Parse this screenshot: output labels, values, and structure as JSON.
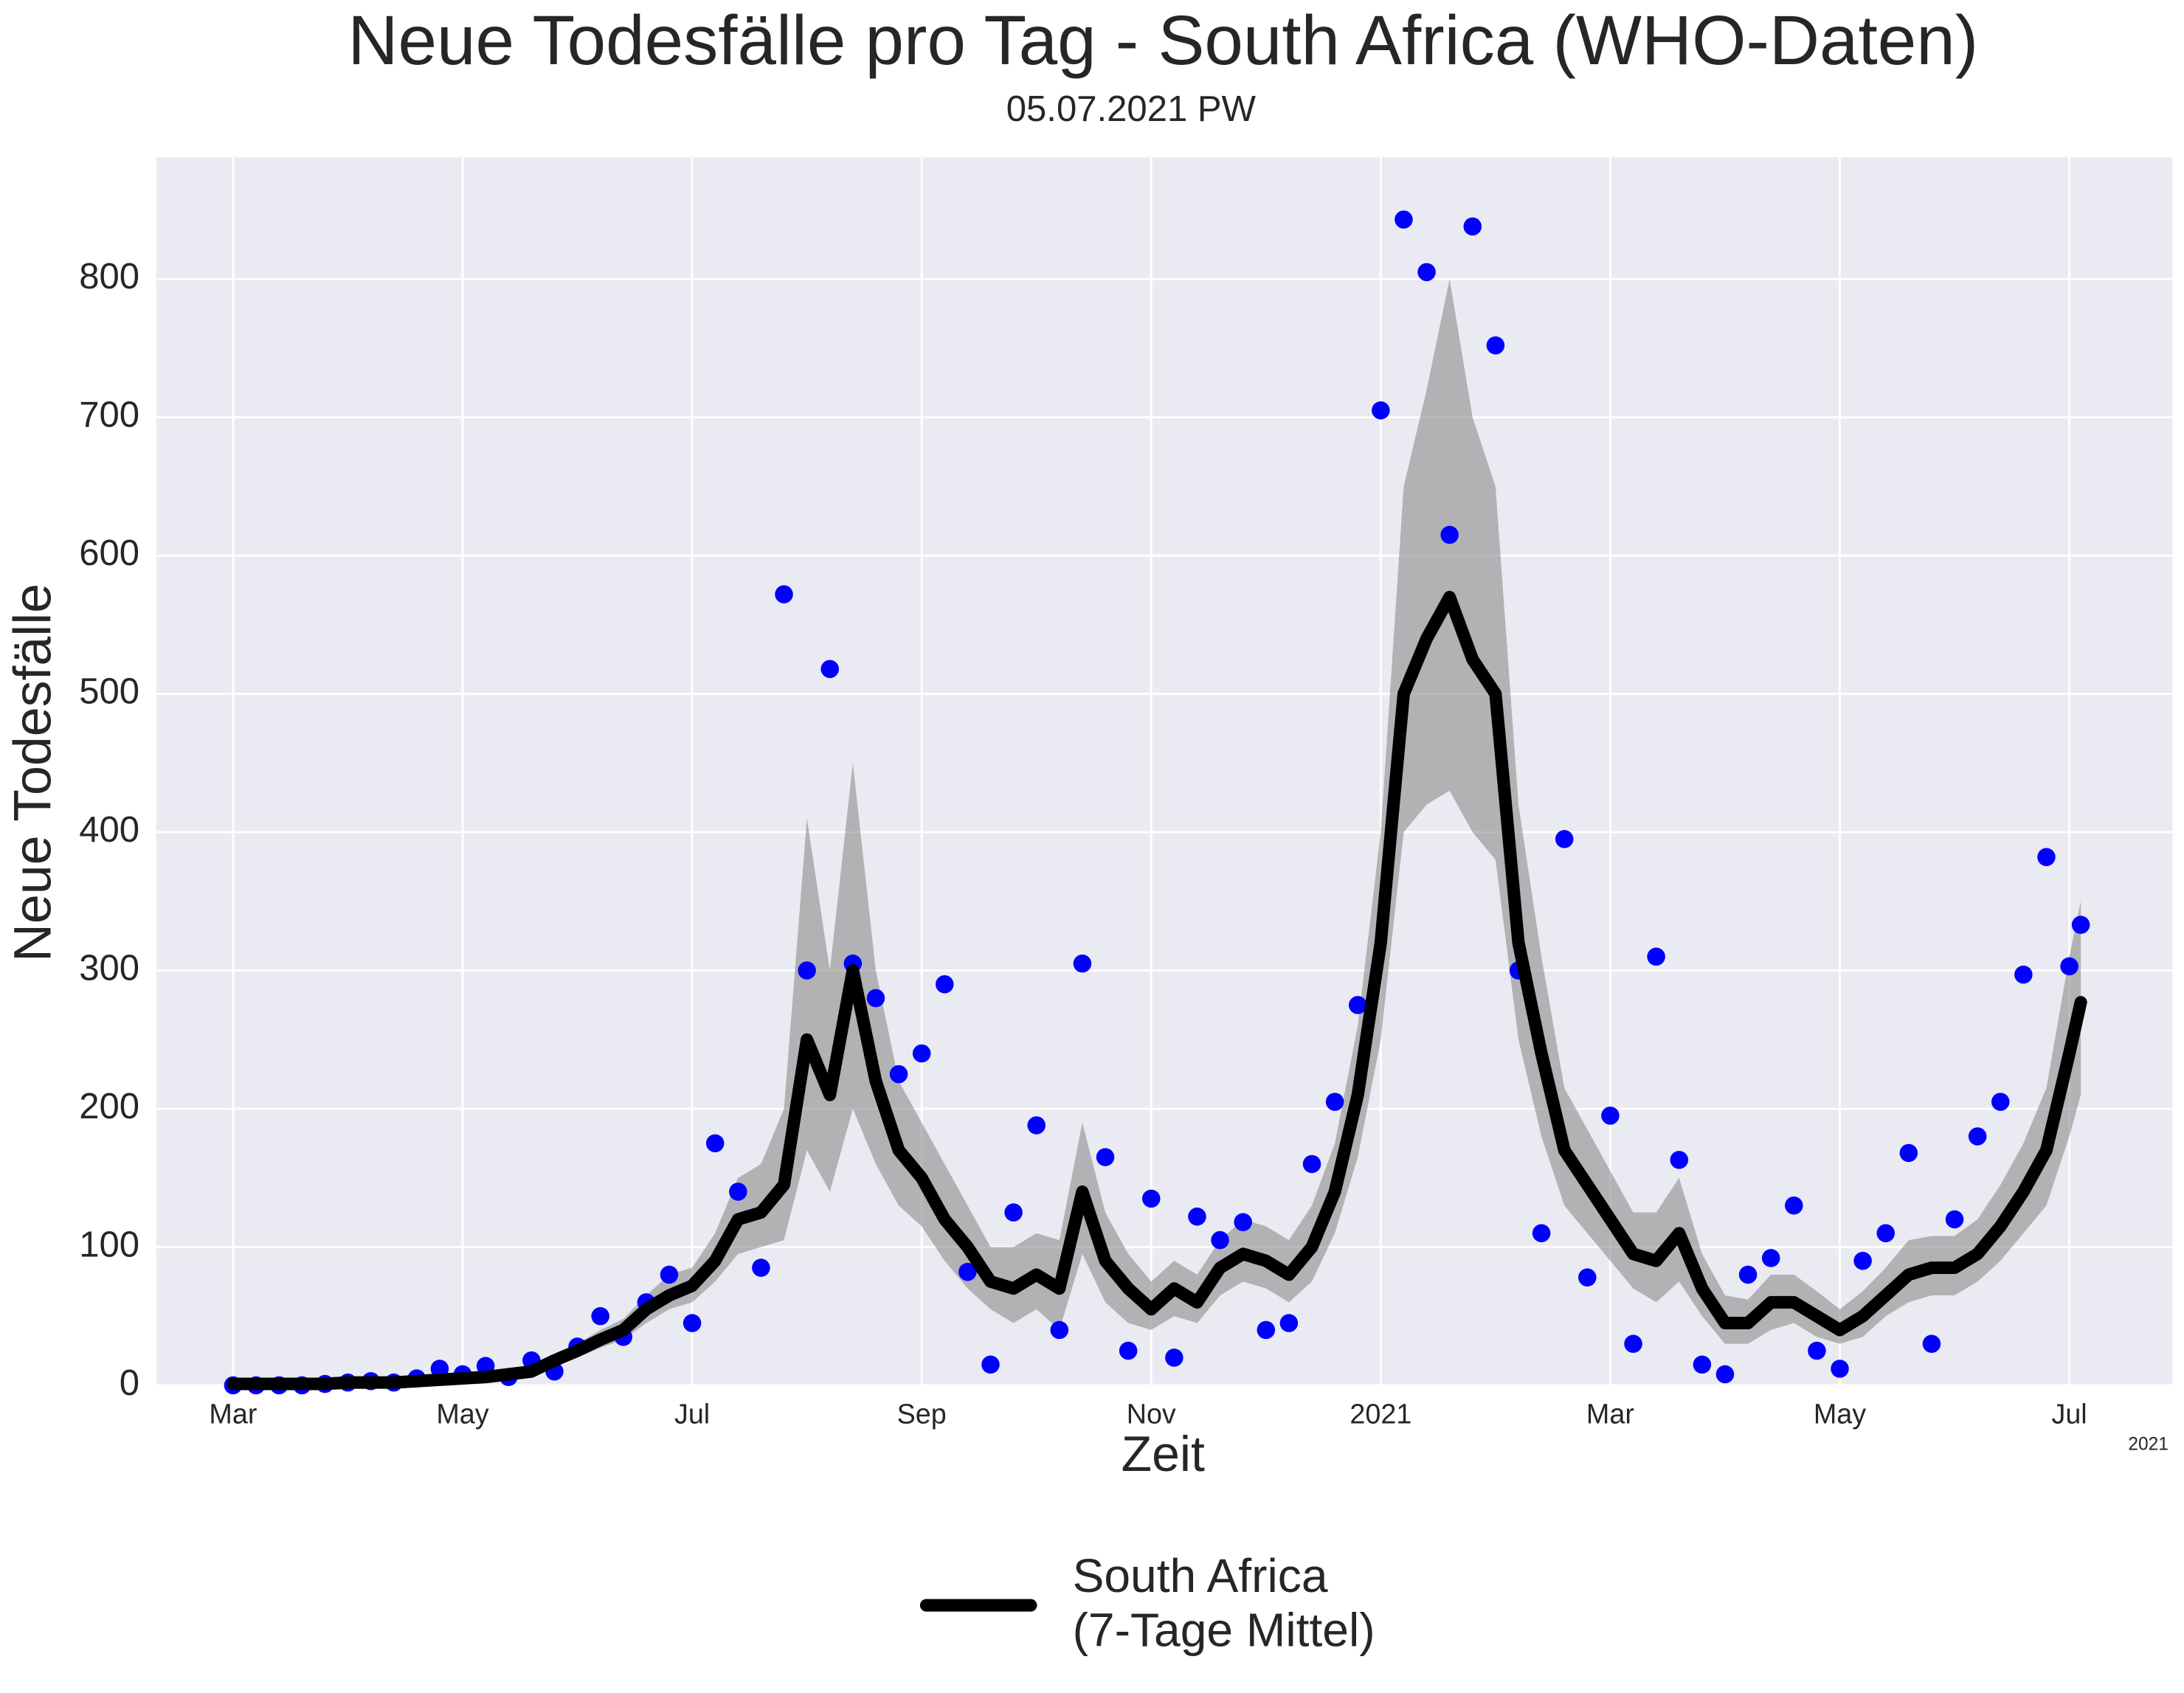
{
  "chart_data": {
    "type": "line",
    "title": "Neue Todesfälle pro Tag - South Africa (WHO-Daten)",
    "subtitle": "05.07.2021 PW",
    "xlabel": "Zeit",
    "ylabel": "Neue Todesfälle",
    "x_offset_label": "2021",
    "grid": true,
    "legend": "bottom",
    "xlim": [
      -0.67,
      16.9
    ],
    "ylim": [
      0,
      888
    ],
    "xticks": [
      {
        "value": 0,
        "label": "Mar"
      },
      {
        "value": 2,
        "label": "May"
      },
      {
        "value": 4,
        "label": "Jul"
      },
      {
        "value": 6,
        "label": "Sep"
      },
      {
        "value": 8,
        "label": "Nov"
      },
      {
        "value": 10,
        "label": "2021"
      },
      {
        "value": 12,
        "label": "Mar"
      },
      {
        "value": 14,
        "label": "May"
      },
      {
        "value": 16,
        "label": "Jul"
      }
    ],
    "yticks": [
      0,
      100,
      200,
      300,
      400,
      500,
      600,
      700,
      800
    ],
    "x": [
      0,
      0.2,
      0.4,
      0.6,
      0.8,
      1.0,
      1.2,
      1.4,
      1.6,
      1.8,
      2.0,
      2.2,
      2.4,
      2.6,
      2.8,
      3.0,
      3.2,
      3.4,
      3.6,
      3.8,
      4.0,
      4.2,
      4.4,
      4.6,
      4.8,
      5.0,
      5.2,
      5.4,
      5.6,
      5.8,
      6.0,
      6.2,
      6.4,
      6.6,
      6.8,
      7.0,
      7.2,
      7.4,
      7.6,
      7.8,
      8.0,
      8.2,
      8.4,
      8.6,
      8.8,
      9.0,
      9.2,
      9.4,
      9.6,
      9.8,
      10.0,
      10.2,
      10.4,
      10.6,
      10.8,
      11.0,
      11.2,
      11.4,
      11.6,
      11.8,
      12.0,
      12.2,
      12.4,
      12.6,
      12.8,
      13.0,
      13.2,
      13.4,
      13.6,
      13.8,
      14.0,
      14.2,
      14.4,
      14.6,
      14.8,
      15.0,
      15.2,
      15.4,
      15.6,
      15.8,
      16.0,
      16.1
    ],
    "band": {
      "color": "#8c8c8c",
      "lower": [
        0,
        0,
        0,
        0,
        0,
        1,
        1,
        1,
        2,
        3,
        4,
        4,
        6,
        8,
        14,
        20,
        27,
        33,
        45,
        55,
        60,
        75,
        95,
        100,
        105,
        170,
        140,
        200,
        160,
        130,
        115,
        90,
        70,
        55,
        45,
        55,
        40,
        95,
        60,
        45,
        40,
        50,
        45,
        65,
        75,
        70,
        60,
        75,
        110,
        165,
        250,
        400,
        420,
        430,
        400,
        380,
        250,
        180,
        130,
        110,
        90,
        70,
        60,
        75,
        50,
        30,
        30,
        40,
        45,
        35,
        30,
        35,
        50,
        60,
        65,
        65,
        75,
        90,
        110,
        130,
        180,
        210
      ],
      "upper": [
        2,
        2,
        2,
        2,
        2,
        3,
        3,
        3,
        4,
        6,
        7,
        9,
        11,
        13,
        22,
        30,
        40,
        48,
        65,
        80,
        85,
        110,
        150,
        160,
        200,
        410,
        300,
        450,
        300,
        220,
        190,
        160,
        130,
        100,
        100,
        110,
        105,
        190,
        125,
        95,
        75,
        90,
        80,
        105,
        120,
        115,
        105,
        130,
        175,
        260,
        400,
        650,
        720,
        800,
        700,
        650,
        420,
        310,
        215,
        185,
        155,
        125,
        125,
        150,
        95,
        65,
        62,
        80,
        80,
        68,
        55,
        68,
        85,
        105,
        108,
        108,
        120,
        145,
        175,
        215,
        310,
        350
      ]
    },
    "series": [
      {
        "marker": "dot",
        "color": "#0000ff",
        "values": [
          0,
          0,
          0,
          0,
          1,
          2,
          3,
          2,
          5,
          12,
          8,
          14,
          6,
          18,
          10,
          28,
          50,
          35,
          60,
          80,
          45,
          175,
          140,
          85,
          572,
          300,
          518,
          305,
          280,
          225,
          240,
          290,
          82,
          15,
          125,
          188,
          40,
          305,
          165,
          25,
          135,
          20,
          122,
          105,
          118,
          40,
          45,
          160,
          205,
          275,
          705,
          843,
          805,
          615,
          838,
          752,
          300,
          110,
          395,
          78,
          195,
          30,
          310,
          163,
          15,
          8,
          80,
          92,
          130,
          25,
          12,
          90,
          110,
          168,
          30,
          120,
          180,
          205,
          297,
          382,
          303,
          333
        ]
      },
      {
        "name": "South Africa\n(7-Tage Mittel)",
        "color": "#000000",
        "values": [
          1,
          1,
          1,
          1,
          1,
          2,
          2,
          2,
          3,
          4,
          5,
          6,
          8,
          10,
          18,
          25,
          33,
          40,
          55,
          65,
          72,
          90,
          120,
          125,
          145,
          250,
          210,
          300,
          220,
          170,
          150,
          120,
          100,
          75,
          70,
          80,
          70,
          140,
          90,
          70,
          55,
          70,
          60,
          85,
          95,
          90,
          80,
          100,
          140,
          210,
          320,
          500,
          540,
          570,
          525,
          500,
          320,
          240,
          170,
          145,
          120,
          95,
          90,
          110,
          70,
          45,
          45,
          60,
          60,
          50,
          40,
          50,
          65,
          80,
          85,
          85,
          95,
          115,
          140,
          170,
          240,
          277
        ]
      }
    ]
  }
}
